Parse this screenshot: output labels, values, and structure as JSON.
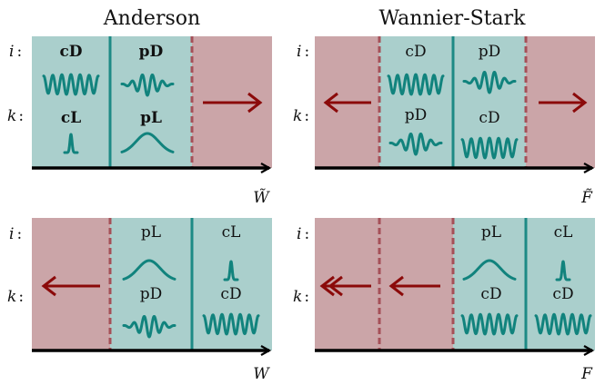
{
  "titles": {
    "anderson": "Anderson",
    "wannier_stark": "Wannier-Stark"
  },
  "row_labels": {
    "i": "i",
    "k": "k",
    "separator": ":"
  },
  "axis_labels": {
    "top_left": "W̃",
    "top_right": "F̃",
    "bottom_left": "W",
    "bottom_right": "F"
  },
  "panels": {
    "top_left": {
      "region1": {
        "i": "cD",
        "k": "cL",
        "bold": true
      },
      "region2": {
        "i": "pD",
        "k": "pL",
        "bold": true
      }
    },
    "top_right": {
      "region1": {
        "i": "cD",
        "k": "pD"
      },
      "region2": {
        "i": "pD",
        "k": "cD"
      }
    },
    "bottom_left": {
      "region1": {
        "i": "pL",
        "k": "pD"
      },
      "region2": {
        "i": "cL",
        "k": "cD"
      }
    },
    "bottom_right": {
      "region1": {
        "i": "pL",
        "k": "cD"
      },
      "region2": {
        "i": "cL",
        "k": "cD"
      }
    }
  },
  "colors": {
    "teal_fill": "#aacfcc",
    "rose_fill": "#cba5a8",
    "teal_line": "#1d8a85",
    "wave": "#11837d",
    "arrow_red": "#8b0a0a",
    "dash_red": "#a55058",
    "axis": "#000000"
  }
}
